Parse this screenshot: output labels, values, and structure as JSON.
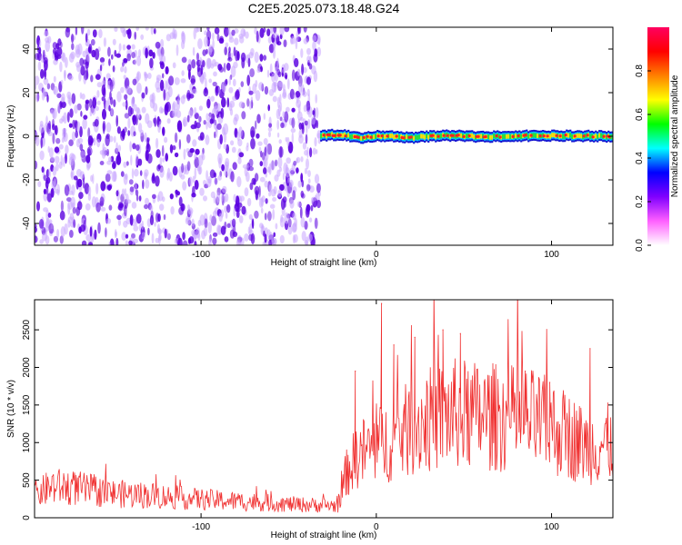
{
  "title": "C2E5.2025.073.18.48.G24",
  "chart_data": [
    {
      "type": "heatmap",
      "title": "C2E5.2025.073.18.48.G24",
      "xlabel": "Height of straight line (km)",
      "ylabel": "Frequency (Hz)",
      "xlim": [
        -195,
        135
      ],
      "ylim": [
        -50,
        50
      ],
      "x_ticks": [
        "-100",
        "0",
        "100"
      ],
      "y_ticks": [
        "-40",
        "-20",
        "0",
        "20",
        "40"
      ],
      "noise_region": {
        "x_start": -195,
        "x_end": -32,
        "freq_range": [
          -50,
          50
        ],
        "color": "#5a00e0"
      },
      "signal_track": [
        {
          "x": -32,
          "f": 0.3
        },
        {
          "x": -20,
          "f": 0.8
        },
        {
          "x": -10,
          "f": -0.8
        },
        {
          "x": 0,
          "f": 0.2
        },
        {
          "x": 20,
          "f": -0.6
        },
        {
          "x": 40,
          "f": 0.4
        },
        {
          "x": 60,
          "f": -0.3
        },
        {
          "x": 80,
          "f": 0.2
        },
        {
          "x": 100,
          "f": 0.3
        },
        {
          "x": 120,
          "f": 0.1
        },
        {
          "x": 135,
          "f": -0.2
        }
      ],
      "colorbar": {
        "label": "Normalized spectral amplitude",
        "ticks": [
          "0.0",
          "0.2",
          "0.4",
          "0.6",
          "0.8"
        ],
        "range": [
          0,
          1
        ],
        "colors": [
          "#ffffff",
          "#ff60ff",
          "#8000ff",
          "#0000ff",
          "#00ffff",
          "#00ff00",
          "#ffff00",
          "#ff8000",
          "#ff0000",
          "#ff0060"
        ]
      }
    },
    {
      "type": "line",
      "xlabel": "Height of straight line (km)",
      "ylabel": "SNR (10 * v/v)",
      "xlim": [
        -195,
        135
      ],
      "ylim": [
        0,
        2900
      ],
      "x_ticks": [
        "-100",
        "0",
        "100"
      ],
      "y_ticks": [
        "0",
        "500",
        "1000",
        "1500",
        "2000",
        "2500"
      ],
      "color": "#f03030",
      "trend": [
        {
          "x": -195,
          "y": 300
        },
        {
          "x": -185,
          "y": 420
        },
        {
          "x": -170,
          "y": 390
        },
        {
          "x": -150,
          "y": 320
        },
        {
          "x": -130,
          "y": 300
        },
        {
          "x": -110,
          "y": 260
        },
        {
          "x": -90,
          "y": 230
        },
        {
          "x": -70,
          "y": 210
        },
        {
          "x": -50,
          "y": 180
        },
        {
          "x": -22,
          "y": 160
        },
        {
          "x": -17,
          "y": 600
        },
        {
          "x": -10,
          "y": 850
        },
        {
          "x": 0,
          "y": 950
        },
        {
          "x": 10,
          "y": 1050
        },
        {
          "x": 20,
          "y": 1200
        },
        {
          "x": 30,
          "y": 1300
        },
        {
          "x": 45,
          "y": 1380
        },
        {
          "x": 60,
          "y": 1350
        },
        {
          "x": 75,
          "y": 1330
        },
        {
          "x": 90,
          "y": 1280
        },
        {
          "x": 105,
          "y": 1150
        },
        {
          "x": 120,
          "y": 950
        },
        {
          "x": 135,
          "y": 1000
        }
      ],
      "peaks": [
        {
          "x": 3,
          "y": 2850
        },
        {
          "x": -12,
          "y": 1950
        },
        {
          "x": 10,
          "y": 2300
        },
        {
          "x": 22,
          "y": 2400
        },
        {
          "x": 38,
          "y": 2500
        },
        {
          "x": 48,
          "y": 2450
        },
        {
          "x": 85,
          "y": 1950
        },
        {
          "x": 99,
          "y": 1800
        },
        {
          "x": 122,
          "y": 2250
        }
      ]
    }
  ]
}
